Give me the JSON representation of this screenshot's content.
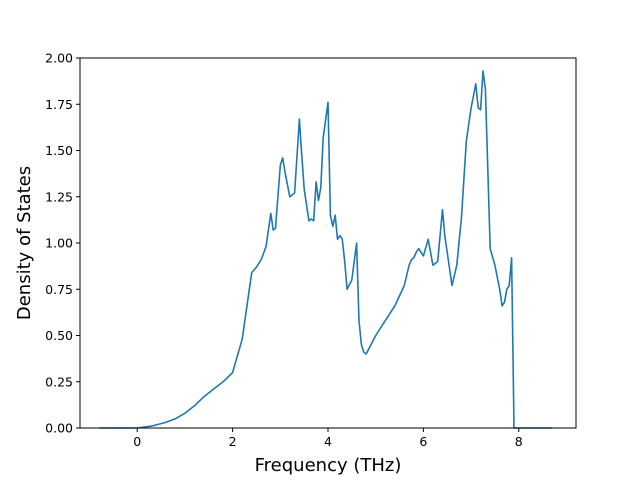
{
  "chart_data": {
    "type": "line",
    "xlabel": "Frequency (THz)",
    "ylabel": "Density of States",
    "xlim": [
      -1.2,
      9.2
    ],
    "ylim": [
      0.0,
      2.0
    ],
    "xticks": [
      0,
      2,
      4,
      6,
      8
    ],
    "xtick_labels": [
      "0",
      "2",
      "4",
      "6",
      "8"
    ],
    "yticks": [
      0.0,
      0.25,
      0.5,
      0.75,
      1.0,
      1.25,
      1.5,
      1.75,
      2.0
    ],
    "ytick_labels": [
      "0.00",
      "0.25",
      "0.50",
      "0.75",
      "1.00",
      "1.25",
      "1.50",
      "1.75",
      "2.00"
    ],
    "grid": false,
    "line_color": "#1f77b4",
    "series": [
      {
        "x": [
          -0.8,
          0.0,
          0.3,
          0.6,
          0.8,
          1.0,
          1.2,
          1.4,
          1.6,
          1.8,
          2.0,
          2.2,
          2.4,
          2.5,
          2.6,
          2.7,
          2.8,
          2.85,
          2.9,
          3.0,
          3.05,
          3.1,
          3.2,
          3.3,
          3.4,
          3.43,
          3.5,
          3.6,
          3.65,
          3.7,
          3.75,
          3.8,
          3.85,
          3.9,
          4.0,
          4.05,
          4.1,
          4.15,
          4.2,
          4.25,
          4.3,
          4.35,
          4.4,
          4.5,
          4.6,
          4.65,
          4.7,
          4.75,
          4.8,
          4.9,
          5.0,
          5.2,
          5.4,
          5.6,
          5.7,
          5.75,
          5.8,
          5.85,
          5.9,
          6.0,
          6.1,
          6.2,
          6.3,
          6.4,
          6.45,
          6.5,
          6.6,
          6.7,
          6.8,
          6.9,
          7.0,
          7.1,
          7.15,
          7.2,
          7.25,
          7.3,
          7.4,
          7.5,
          7.6,
          7.65,
          7.7,
          7.75,
          7.8,
          7.85,
          7.9,
          7.95,
          8.0,
          8.2,
          8.4,
          8.7
        ],
        "y": [
          0.0,
          0.0,
          0.01,
          0.03,
          0.05,
          0.08,
          0.12,
          0.17,
          0.21,
          0.25,
          0.3,
          0.48,
          0.84,
          0.87,
          0.91,
          0.98,
          1.16,
          1.07,
          1.08,
          1.42,
          1.46,
          1.38,
          1.25,
          1.27,
          1.67,
          1.55,
          1.29,
          1.12,
          1.13,
          1.12,
          1.33,
          1.23,
          1.3,
          1.57,
          1.76,
          1.15,
          1.09,
          1.15,
          1.02,
          1.04,
          1.02,
          0.9,
          0.75,
          0.8,
          1.0,
          0.58,
          0.45,
          0.41,
          0.4,
          0.45,
          0.5,
          0.58,
          0.66,
          0.77,
          0.88,
          0.91,
          0.92,
          0.95,
          0.97,
          0.93,
          1.02,
          0.88,
          0.9,
          1.18,
          1.04,
          0.95,
          0.77,
          0.88,
          1.14,
          1.55,
          1.73,
          1.86,
          1.73,
          1.72,
          1.93,
          1.83,
          0.97,
          0.88,
          0.75,
          0.66,
          0.68,
          0.75,
          0.77,
          0.92,
          0.0,
          0.0,
          0.0,
          0.0,
          0.0,
          0.0
        ]
      }
    ]
  }
}
